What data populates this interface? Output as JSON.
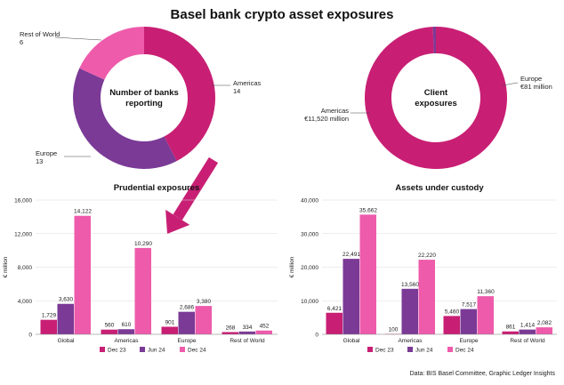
{
  "title": "Basel bank crypto asset exposures",
  "source": "Data: BIS Basel Committee, Graphic Ledger Insights",
  "colors": {
    "dec23": "#C81F74",
    "jun24": "#7B3A96",
    "dec24": "#EE5BAB",
    "americas_donut": "#C81F74",
    "europe_donut": "#7B3A96",
    "row_donut": "#EE5BAB",
    "arrow": "#C81F74"
  },
  "chart_data": [
    {
      "type": "pie",
      "title": "Number of banks reporting",
      "title_lines": [
        "Number of banks",
        "reporting"
      ],
      "slices": [
        {
          "name": "Americas",
          "value": 14,
          "value_label": "14"
        },
        {
          "name": "Europe",
          "value": 13,
          "value_label": "13"
        },
        {
          "name": "Rest of World",
          "value": 6,
          "value_label": "6"
        }
      ]
    },
    {
      "type": "pie",
      "title": "Client exposures",
      "title_lines": [
        "Client",
        "exposures"
      ],
      "slices": [
        {
          "name": "Americas",
          "value": 11520,
          "value_label": "€11,520 million"
        },
        {
          "name": "Europe",
          "value": 81,
          "value_label": "€81 million"
        }
      ]
    },
    {
      "type": "bar",
      "title": "Prudential exposures",
      "ylabel": "€ million",
      "categories": [
        "Global",
        "Americas",
        "Europe",
        "Rest of World"
      ],
      "ylim": [
        0,
        16000
      ],
      "yticks": [
        0,
        4000,
        8000,
        12000,
        16000
      ],
      "ytick_labels": [
        "0",
        "4,000",
        "8,000",
        "12,000",
        "16,000"
      ],
      "series": [
        {
          "name": "Dec 23",
          "values": [
            1729,
            560,
            901,
            268
          ],
          "labels": [
            "1,729",
            "560",
            "901",
            "268"
          ]
        },
        {
          "name": "Jun 24",
          "values": [
            3630,
            610,
            2686,
            334
          ],
          "labels": [
            "3,630",
            "610",
            "2,686",
            "334"
          ]
        },
        {
          "name": "Dec 24",
          "values": [
            14122,
            10290,
            3380,
            452
          ],
          "labels": [
            "14,122",
            "10,290",
            "3,380",
            "452"
          ]
        }
      ]
    },
    {
      "type": "bar",
      "title": "Assets under custody",
      "ylabel": "€ million",
      "categories": [
        "Global",
        "Americas",
        "Europe",
        "Rest of World"
      ],
      "ylim": [
        0,
        40000
      ],
      "yticks": [
        0,
        10000,
        20000,
        30000,
        40000
      ],
      "ytick_labels": [
        "0",
        "10,000",
        "20,000",
        "30,000",
        "40,000"
      ],
      "series": [
        {
          "name": "Dec 23",
          "values": [
            6421,
            100,
            5460,
            861
          ],
          "labels": [
            "6,421",
            "100",
            "5,460",
            "861"
          ]
        },
        {
          "name": "Jun 24",
          "values": [
            22491,
            13560,
            7517,
            1414
          ],
          "labels": [
            "22,491",
            "13,560",
            "7,517",
            "1,414"
          ]
        },
        {
          "name": "Dec 24",
          "values": [
            35662,
            22220,
            11360,
            2082
          ],
          "labels": [
            "35,662",
            "22,220",
            "11,360",
            "2,082"
          ]
        }
      ]
    }
  ]
}
